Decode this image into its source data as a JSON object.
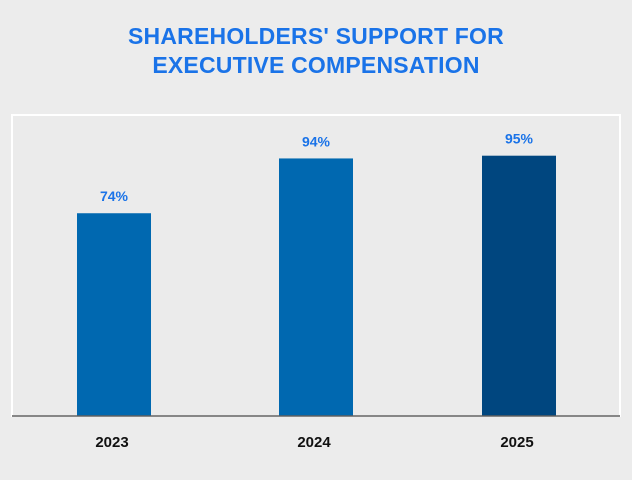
{
  "title_lines": [
    "SHAREHOLDERS' SUPPORT FOR",
    "EXECUTIVE COMPENSATION"
  ],
  "chart_data": {
    "type": "bar",
    "title": "SHAREHOLDERS' SUPPORT FOR EXECUTIVE COMPENSATION",
    "categories": [
      "2023",
      "2024",
      "2025"
    ],
    "values": [
      74,
      94,
      95
    ],
    "data_labels": [
      "74%",
      "94%",
      "95%"
    ],
    "ylim": [
      0,
      100
    ],
    "xlabel": "",
    "ylabel": "",
    "grid": false,
    "bar_colors": [
      "#0068b0",
      "#0068b0",
      "#00467f"
    ],
    "label_color": "#1a73e8",
    "axis_label_color": "#111111",
    "plot_background": "#ebebeb",
    "plot_border_color": "#ffffff"
  }
}
